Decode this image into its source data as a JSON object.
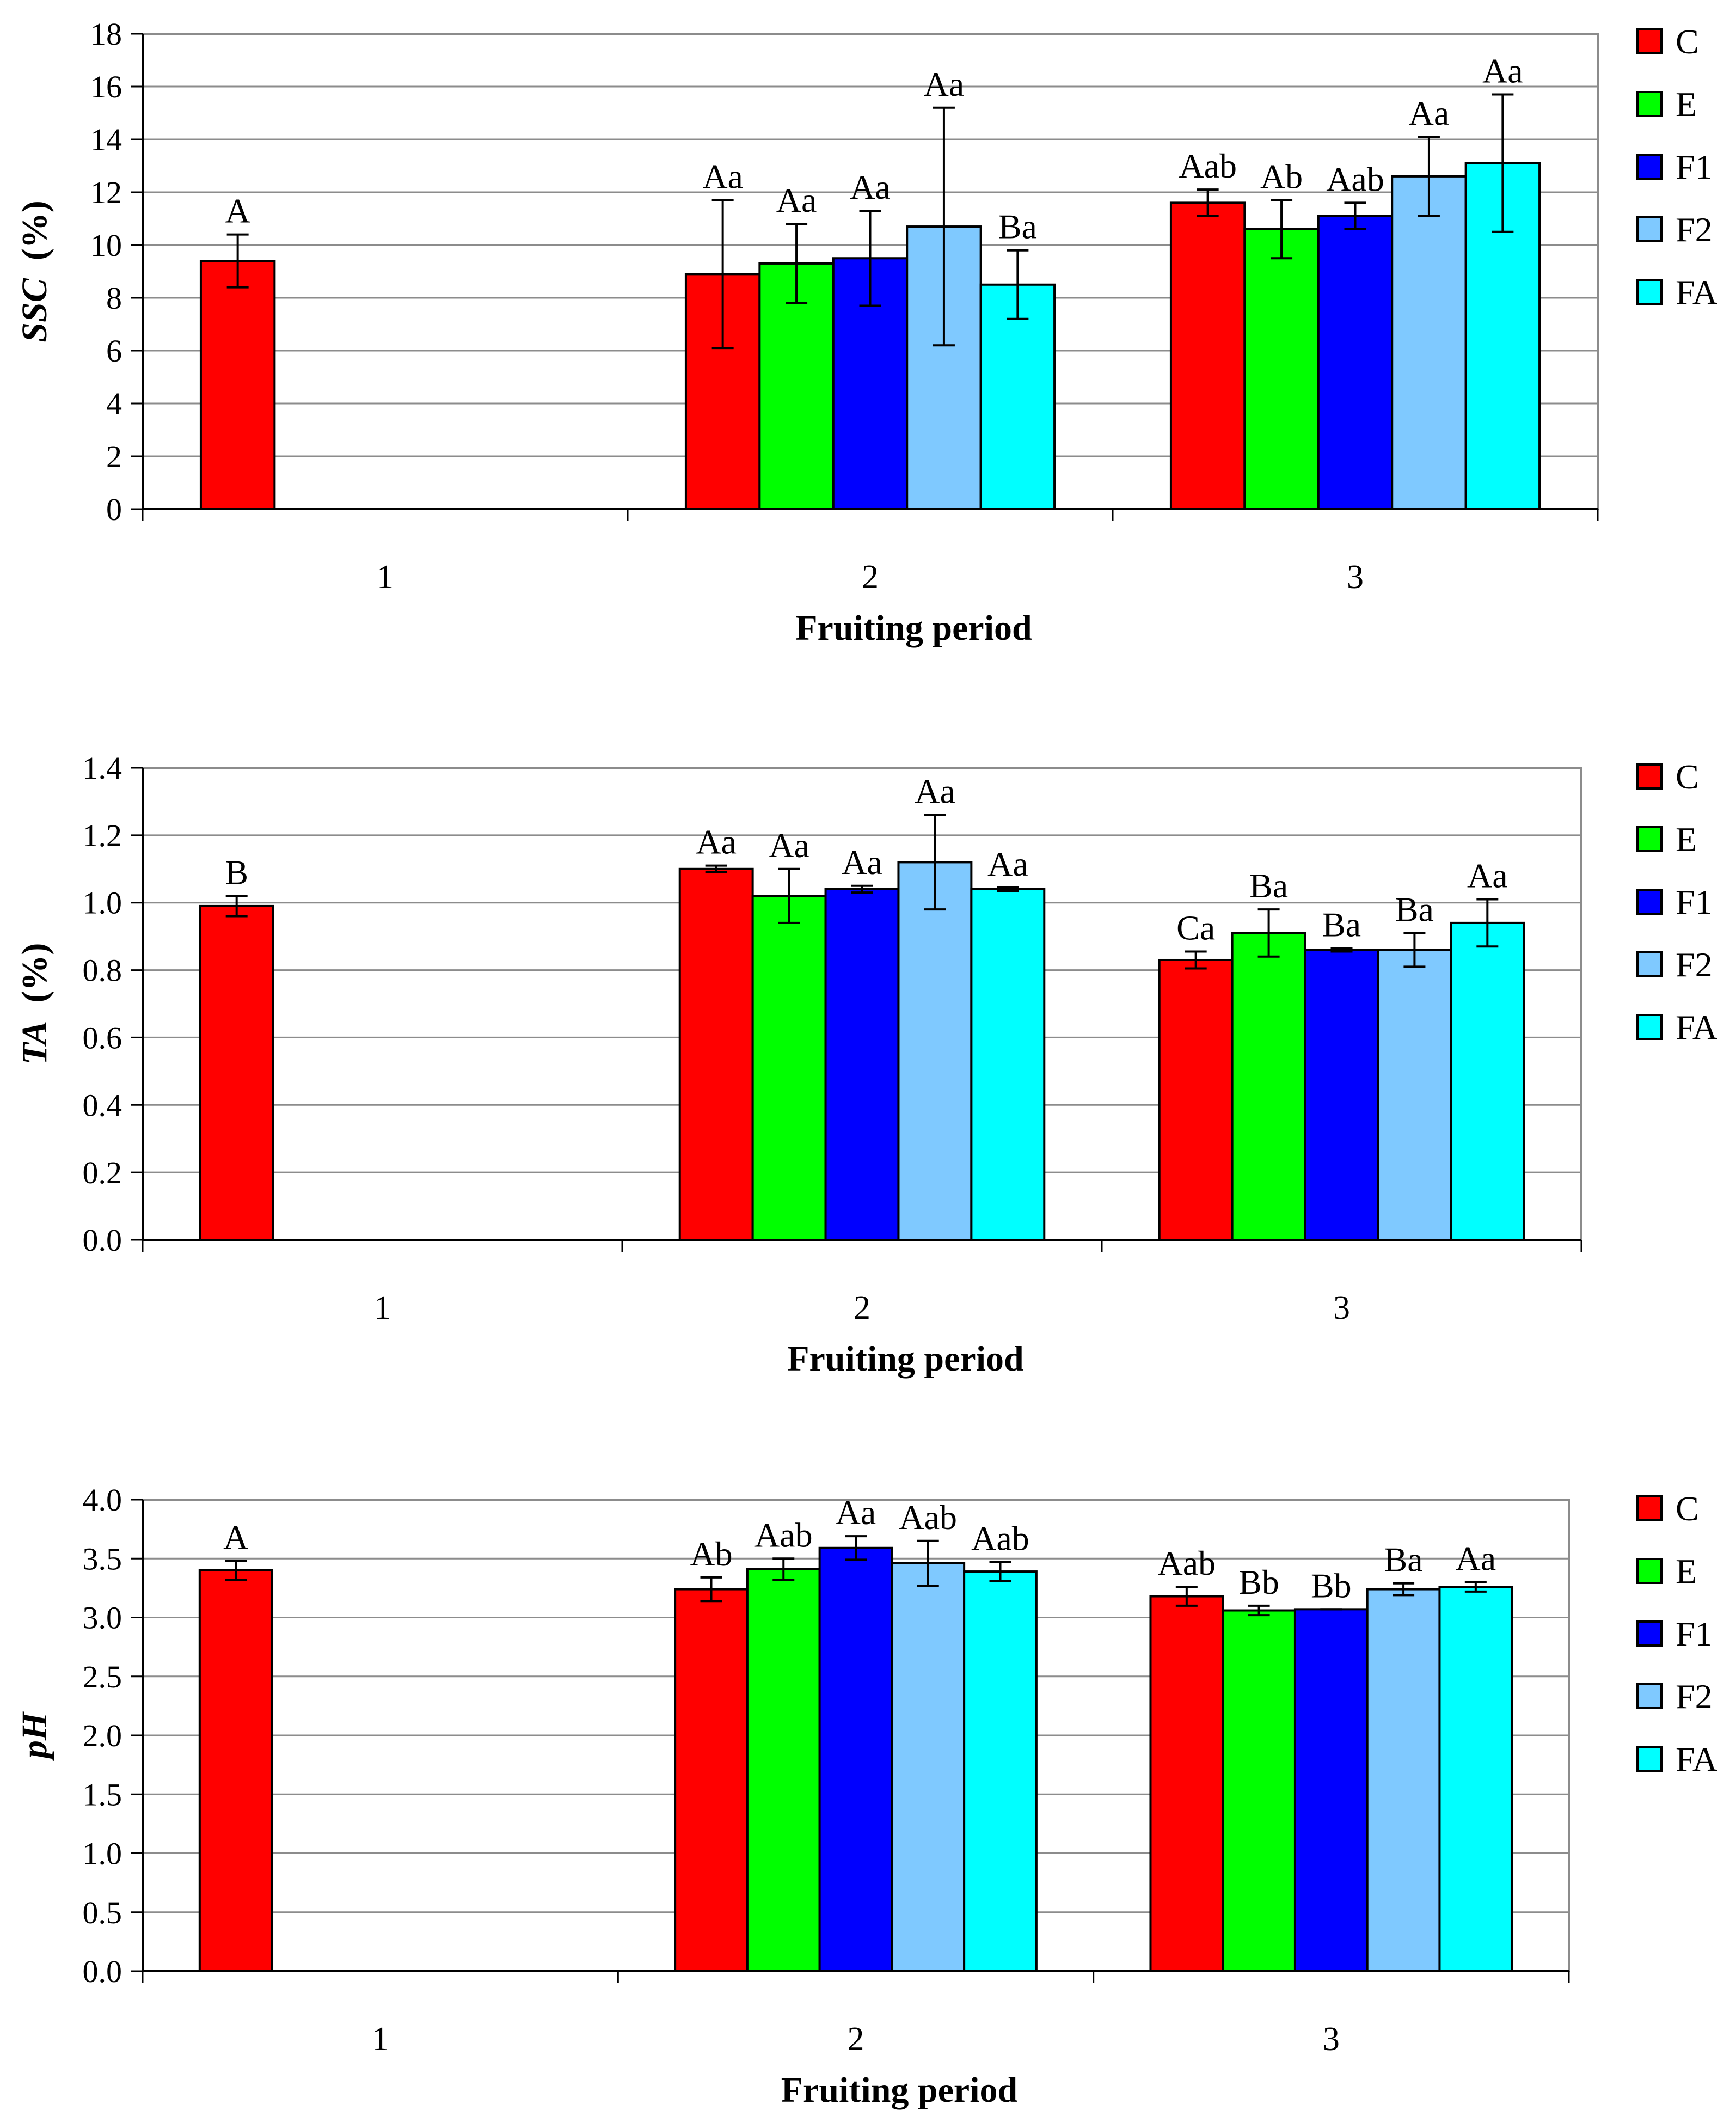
{
  "colors": {
    "C": "#ff0000",
    "E": "#00ff00",
    "F1": "#0000ff",
    "F2": "#7fc9ff",
    "FA": "#00ffff",
    "grid": "#8c8c8c",
    "frame": "#8c8c8c"
  },
  "chart_data": [
    {
      "type": "bar",
      "title": "",
      "xlabel": "Fruiting period",
      "ylabel": "SSC",
      "ylabel_unit": "(%)",
      "categories": [
        "1",
        "2",
        "3"
      ],
      "ylim": [
        0,
        18
      ],
      "yticks": [
        "0",
        "2",
        "4",
        "6",
        "8",
        "10",
        "12",
        "14",
        "16",
        "18"
      ],
      "legend": [
        "C",
        "E",
        "F1",
        "F2",
        "FA"
      ],
      "legend_position": "right",
      "series": [
        {
          "name": "C",
          "values": [
            9.4,
            8.9,
            11.6
          ],
          "errors": [
            1.0,
            2.8,
            0.5
          ],
          "labels": [
            "A",
            "Aa",
            "Aab"
          ]
        },
        {
          "name": "E",
          "values": [
            0,
            9.3,
            10.6
          ],
          "errors": [
            0,
            1.5,
            1.1
          ],
          "labels": [
            "",
            "Aa",
            "Ab"
          ]
        },
        {
          "name": "F1",
          "values": [
            0,
            9.5,
            11.1
          ],
          "errors": [
            0,
            1.8,
            0.5
          ],
          "labels": [
            "",
            "Aa",
            "Aab"
          ]
        },
        {
          "name": "F2",
          "values": [
            0,
            10.7,
            12.6
          ],
          "errors": [
            0,
            4.5,
            1.5
          ],
          "labels": [
            "",
            "Aa",
            "Aa"
          ]
        },
        {
          "name": "FA",
          "values": [
            0,
            8.5,
            13.1
          ],
          "errors": [
            0,
            1.3,
            2.6
          ],
          "labels": [
            "",
            "Ba",
            "Aa"
          ]
        }
      ]
    },
    {
      "type": "bar",
      "title": "",
      "xlabel": "Fruiting period",
      "ylabel": "TA",
      "ylabel_unit": "(%)",
      "categories": [
        "1",
        "2",
        "3"
      ],
      "ylim": [
        0,
        1.4
      ],
      "yticks": [
        "0.0",
        "0.2",
        "0.4",
        "0.6",
        "0.8",
        "1.0",
        "1.2",
        "1.4"
      ],
      "legend": [
        "C",
        "E",
        "F1",
        "F2",
        "FA"
      ],
      "legend_position": "right",
      "series": [
        {
          "name": "C",
          "values": [
            0.99,
            1.1,
            0.83
          ],
          "errors": [
            0.03,
            0.01,
            0.025
          ],
          "labels": [
            "B",
            "Aa",
            "Ca"
          ]
        },
        {
          "name": "E",
          "values": [
            0,
            1.02,
            0.91
          ],
          "errors": [
            0,
            0.08,
            0.07
          ],
          "labels": [
            "",
            "Aa",
            "Ba"
          ]
        },
        {
          "name": "F1",
          "values": [
            0,
            1.04,
            0.86
          ],
          "errors": [
            0,
            0.01,
            0.005
          ],
          "labels": [
            "",
            "Aa",
            "Ba"
          ]
        },
        {
          "name": "F2",
          "values": [
            0,
            1.12,
            0.86
          ],
          "errors": [
            0,
            0.14,
            0.05
          ],
          "labels": [
            "",
            "Aa",
            "Ba"
          ]
        },
        {
          "name": "FA",
          "values": [
            0,
            1.04,
            0.94
          ],
          "errors": [
            0,
            0.005,
            0.07
          ],
          "labels": [
            "",
            "Aa",
            "Aa"
          ]
        }
      ]
    },
    {
      "type": "bar",
      "title": "",
      "xlabel": "Fruiting period",
      "ylabel": "pH",
      "ylabel_unit": "",
      "categories": [
        "1",
        "2",
        "3"
      ],
      "ylim": [
        0,
        4.0
      ],
      "yticks": [
        "0.0",
        "0.5",
        "1.0",
        "1.5",
        "2.0",
        "2.5",
        "3.0",
        "3.5",
        "4.0"
      ],
      "legend": [
        "C",
        "E",
        "F1",
        "F2",
        "FA"
      ],
      "legend_position": "right",
      "series": [
        {
          "name": "C",
          "values": [
            3.4,
            3.24,
            3.18
          ],
          "errors": [
            0.08,
            0.1,
            0.08
          ],
          "labels": [
            "A",
            "Ab",
            "Aab"
          ]
        },
        {
          "name": "E",
          "values": [
            0,
            3.41,
            3.06
          ],
          "errors": [
            0,
            0.09,
            0.04
          ],
          "labels": [
            "",
            "Aab",
            "Bb"
          ]
        },
        {
          "name": "F1",
          "values": [
            0,
            3.59,
            3.07
          ],
          "errors": [
            0,
            0.1,
            0.0
          ],
          "labels": [
            "",
            "Aa",
            "Bb"
          ]
        },
        {
          "name": "F2",
          "values": [
            0,
            3.46,
            3.24
          ],
          "errors": [
            0,
            0.19,
            0.05
          ],
          "labels": [
            "",
            "Aab",
            "Ba"
          ]
        },
        {
          "name": "FA",
          "values": [
            0,
            3.39,
            3.26
          ],
          "errors": [
            0,
            0.08,
            0.04
          ],
          "labels": [
            "",
            "Aab",
            "Aa"
          ]
        }
      ]
    }
  ]
}
